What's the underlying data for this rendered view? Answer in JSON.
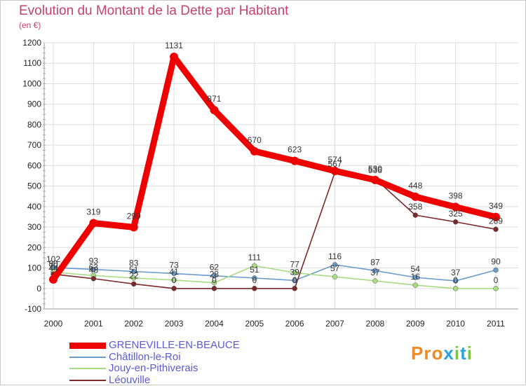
{
  "title": "Evolution du Montant de la Dette par Habitant",
  "unit": "(en €)",
  "logo": {
    "text": "Proxiti",
    "colors": [
      "#f08a24",
      "#f08a24",
      "#f08a24",
      "#2aa3dd",
      "#7dc242",
      "#2aa3dd",
      "#7dc242"
    ]
  },
  "chart_data": {
    "type": "line",
    "x": [
      "2000",
      "2001",
      "2002",
      "2003",
      "2004",
      "2005",
      "2006",
      "2007",
      "2008",
      "2009",
      "2010",
      "2011"
    ],
    "ylim": [
      -100,
      1200
    ],
    "yticks": [
      -100,
      0,
      100,
      200,
      300,
      400,
      500,
      600,
      700,
      800,
      900,
      1000,
      1100,
      1200
    ],
    "grid": true,
    "legend_position": "bottom-left",
    "series": [
      {
        "name": "GRENEVILLE-EN-BEAUCE",
        "color": "#ee0000",
        "values": [
          44,
          319,
          299,
          1131,
          871,
          670,
          623,
          574,
          530,
          448,
          398,
          349
        ]
      },
      {
        "name": "Châtillon-le-Roi",
        "color": "#6a9ccc",
        "values": [
          102,
          93,
          83,
          73,
          62,
          51,
          39,
          116,
          87,
          54,
          37,
          90
        ]
      },
      {
        "name": "Jouy-en-Pithiverais",
        "color": "#a8dc84",
        "values": [
          80,
          63,
          51,
          41,
          28,
          111,
          77,
          57,
          37,
          16,
          0,
          0
        ]
      },
      {
        "name": "Léouville",
        "color": "#7a2a2a",
        "values": [
          70,
          48,
          22,
          0,
          0,
          0,
          0,
          567,
          536,
          358,
          325,
          289
        ]
      }
    ]
  }
}
